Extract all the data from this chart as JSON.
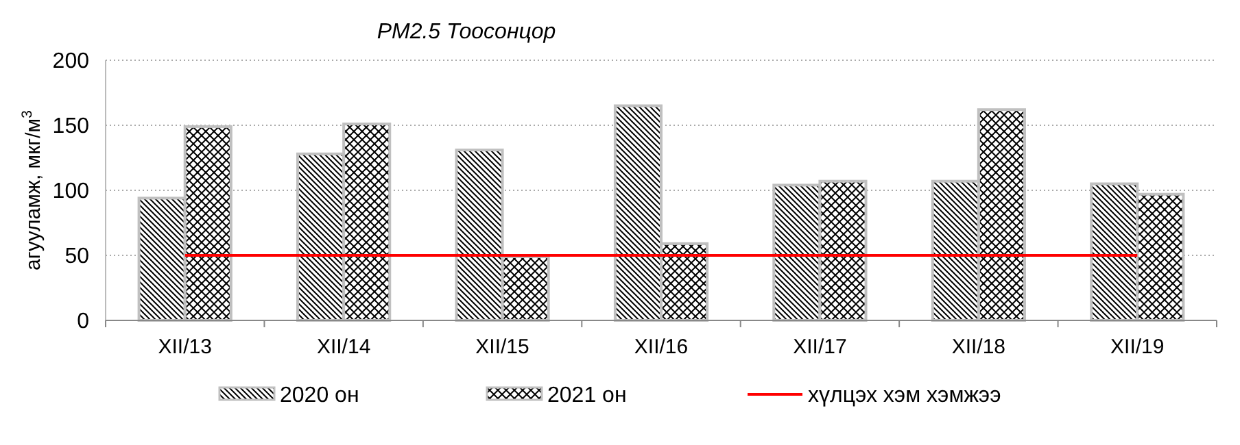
{
  "chart_data": {
    "type": "bar",
    "title": "PM2.5 Тоосонцор",
    "ylabel": "агууламж, мкг/м$^{3}$",
    "categories": [
      "XII/13",
      "XII/14",
      "XII/15",
      "XII/16",
      "XII/17",
      "XII/18",
      "XII/19"
    ],
    "series": [
      {
        "name": "2020 он",
        "color": "#c0c0c0",
        "values": [
          94,
          128,
          131,
          165,
          104,
          107,
          105
        ]
      },
      {
        "name": "2021 он",
        "color": "#c0c0c0",
        "values": [
          149,
          151,
          49,
          59,
          107,
          162,
          97
        ]
      },
      {
        "name": "хүлцэх хэм хэмжээ",
        "type": "line",
        "color": "#ff0000",
        "values": [
          50,
          50,
          50,
          50,
          50,
          50,
          50
        ]
      }
    ],
    "ylim": [
      0,
      200
    ],
    "yticks": [
      0,
      50,
      100,
      150,
      200
    ],
    "grid": "y",
    "legend": "bottom",
    "marker": "none",
    "line_style": "solid"
  }
}
